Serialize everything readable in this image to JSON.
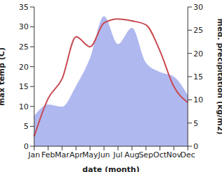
{
  "chart_data": {
    "type": "line",
    "x_label": "date (month)",
    "y_label": "max temp (C)",
    "y2_label": "med. precipitation (kg/m2)",
    "categories": [
      "Jan",
      "Feb",
      "Mar",
      "Apr",
      "May",
      "Jun",
      "Jul",
      "Aug",
      "Sep",
      "Oct",
      "Nov",
      "Dec"
    ],
    "ylim": [
      0,
      35
    ],
    "yticks": [
      0,
      5,
      10,
      15,
      20,
      25,
      30,
      35
    ],
    "y2lim": [
      0,
      30
    ],
    "y2ticks": [
      0,
      5,
      10,
      15,
      20,
      25,
      30
    ],
    "grid": false,
    "series": [
      {
        "name": "med. precipitation",
        "type": "area",
        "axis": "y2",
        "color": "#b0b8f0",
        "values": [
          6.5,
          9,
          8.5,
          13,
          19,
          28,
          22,
          25.5,
          18,
          16,
          15,
          11
        ]
      },
      {
        "name": "max temp",
        "type": "line",
        "axis": "y",
        "color": "#c84a52",
        "values": [
          2.5,
          12,
          17,
          27.5,
          25,
          31,
          32,
          31.5,
          30.5,
          24,
          15,
          11
        ]
      }
    ]
  }
}
